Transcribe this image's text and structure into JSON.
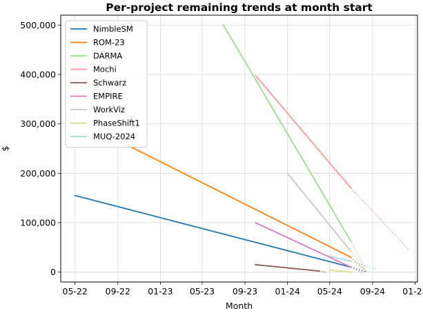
{
  "chart_data": {
    "type": "line",
    "title": "Per-project remaining trends at month start",
    "xlabel": "Month",
    "ylabel": "$",
    "x_ticks": [
      "05-22",
      "09-22",
      "01-23",
      "05-23",
      "09-23",
      "01-24",
      "05-24",
      "09-24",
      "01-25"
    ],
    "x_tick_dates": [
      "2022-05-01",
      "2022-09-01",
      "2023-01-01",
      "2023-05-01",
      "2023-09-01",
      "2024-01-01",
      "2024-05-01",
      "2024-09-01",
      "2025-01-01"
    ],
    "y_ticks": [
      0,
      100000,
      200000,
      300000,
      400000,
      500000
    ],
    "y_tick_labels": [
      "0",
      "100,000",
      "200,000",
      "300,000",
      "400,000",
      "500,000"
    ],
    "xlim": [
      "2022-03-21",
      "2025-01-08"
    ],
    "ylim": [
      -20000,
      520000
    ],
    "grid": true,
    "legend_position": "top-left",
    "series": [
      {
        "name": "NimbleSM",
        "color": "#1f77b4",
        "actual": [
          [
            "2022-05-01",
            155000
          ],
          [
            "2024-07-01",
            10000
          ]
        ],
        "projection": [
          [
            "2024-07-01",
            10000
          ],
          [
            "2024-08-15",
            0
          ]
        ]
      },
      {
        "name": "ROM-23",
        "color": "#ff7f0e",
        "actual": [
          [
            "2022-10-01",
            256000
          ],
          [
            "2024-07-01",
            30000
          ]
        ],
        "projection": [
          [
            "2024-07-01",
            30000
          ],
          [
            "2024-08-15",
            0
          ]
        ]
      },
      {
        "name": "DARMA",
        "color": "#98df8a",
        "actual": [
          [
            "2023-07-01",
            500000
          ],
          [
            "2024-07-01",
            62000
          ]
        ],
        "projection": [
          [
            "2024-07-01",
            62000
          ],
          [
            "2024-08-15",
            0
          ]
        ]
      },
      {
        "name": "Mochi",
        "color": "#ff9896",
        "actual": [
          [
            "2023-10-01",
            398000
          ],
          [
            "2024-07-01",
            170000
          ]
        ],
        "projection": [
          [
            "2024-07-01",
            170000
          ],
          [
            "2024-12-15",
            45000
          ]
        ]
      },
      {
        "name": "Schwarz",
        "color": "#8c564b",
        "actual": [
          [
            "2023-10-01",
            15000
          ],
          [
            "2024-04-01",
            2000
          ]
        ],
        "projection": [
          [
            "2024-04-01",
            2000
          ],
          [
            "2024-04-20",
            0
          ]
        ]
      },
      {
        "name": "EMPIRE",
        "color": "#e377c2",
        "actual": [
          [
            "2023-10-01",
            100000
          ],
          [
            "2024-07-01",
            10000
          ]
        ],
        "projection": [
          [
            "2024-07-01",
            10000
          ],
          [
            "2024-08-01",
            0
          ]
        ]
      },
      {
        "name": "WorkViz",
        "color": "#c7c7c7",
        "actual": [
          [
            "2024-01-01",
            200000
          ],
          [
            "2024-07-01",
            42000
          ]
        ],
        "projection": [
          [
            "2024-07-01",
            42000
          ],
          [
            "2024-08-15",
            0
          ]
        ]
      },
      {
        "name": "PhaseShift1",
        "color": "#dbdb8d",
        "actual": [
          [
            "2024-05-01",
            4000
          ],
          [
            "2024-07-01",
            0
          ]
        ],
        "projection": []
      },
      {
        "name": "MUQ-2024",
        "color": "#9edae5",
        "actual": [
          [
            "2024-05-01",
            32000
          ],
          [
            "2024-07-01",
            22000
          ]
        ],
        "projection": [
          [
            "2024-07-01",
            22000
          ],
          [
            "2024-09-15",
            5000
          ]
        ]
      }
    ]
  }
}
